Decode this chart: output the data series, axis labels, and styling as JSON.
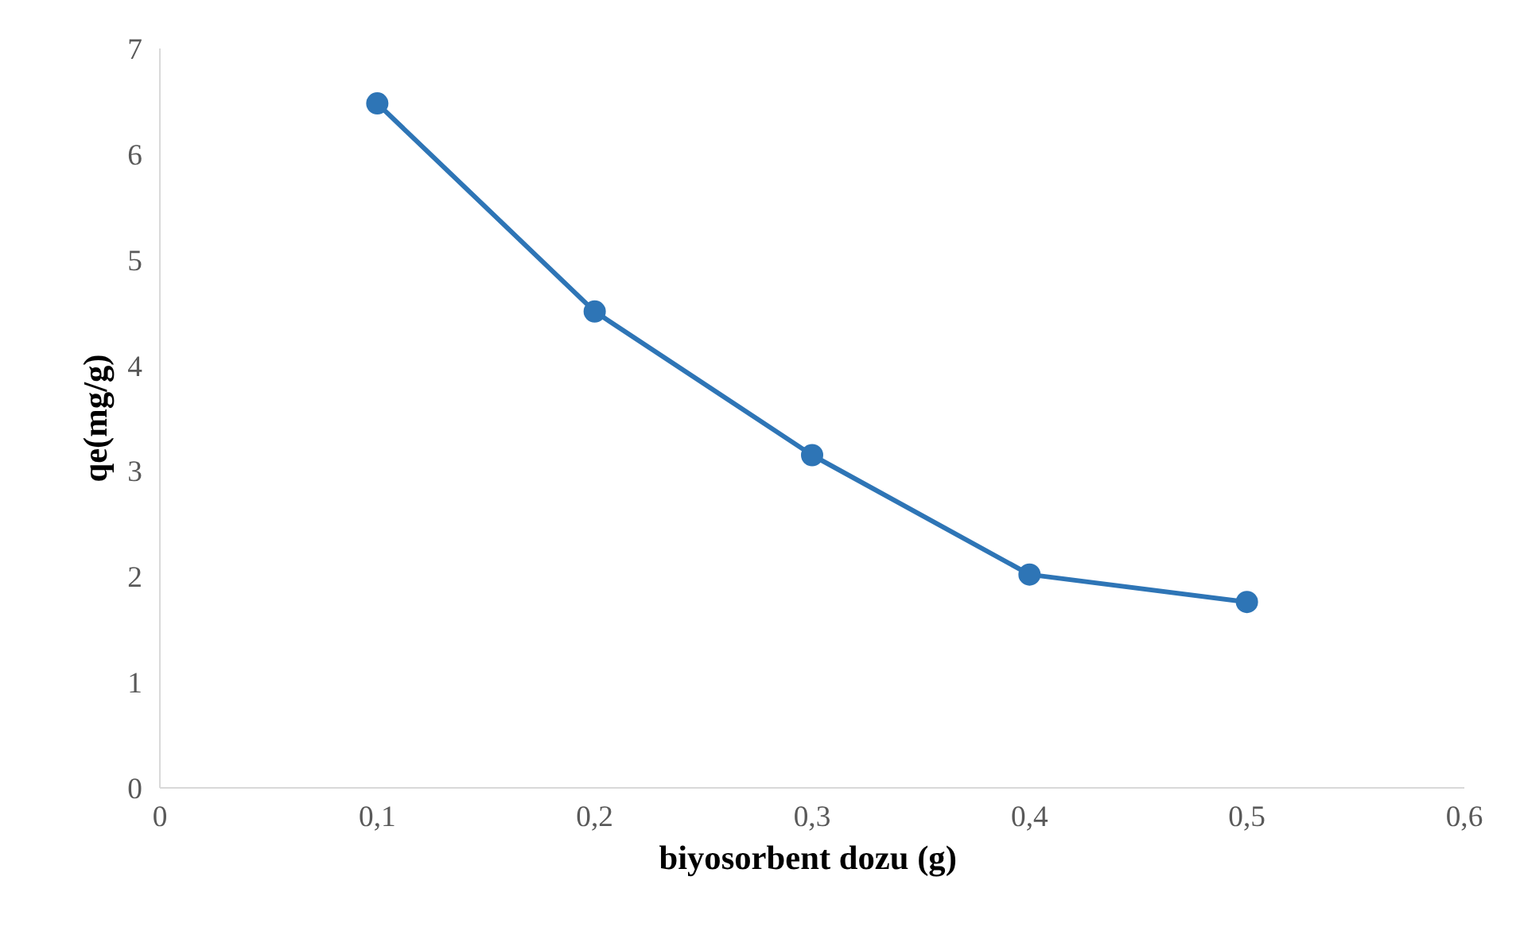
{
  "chart_data": {
    "type": "line",
    "xlabel": "biyosorbent  dozu (g)",
    "ylabel": "qe(mg/g)",
    "x": [
      0.1,
      0.2,
      0.3,
      0.4,
      0.5
    ],
    "series": [
      {
        "color": "#2e75b6",
        "values": [
          6.48,
          4.51,
          3.15,
          2.02,
          1.76
        ]
      }
    ],
    "xlim": [
      0,
      0.6
    ],
    "xticks": [
      0,
      {
        "value": 0.1,
        "label": "0,1"
      },
      {
        "value": 0.2,
        "label": "0,2"
      },
      {
        "value": 0.3,
        "label": "0,3"
      },
      {
        "value": 0.4,
        "label": "0,4"
      },
      {
        "value": 0.5,
        "label": "0,5"
      },
      {
        "value": 0.6,
        "label": "0,6"
      }
    ],
    "ylim": [
      0,
      7
    ],
    "yticks": [
      0,
      1,
      2,
      3,
      4,
      5,
      6,
      7
    ],
    "grid": false,
    "marker": "circle",
    "line_style": "solid"
  }
}
